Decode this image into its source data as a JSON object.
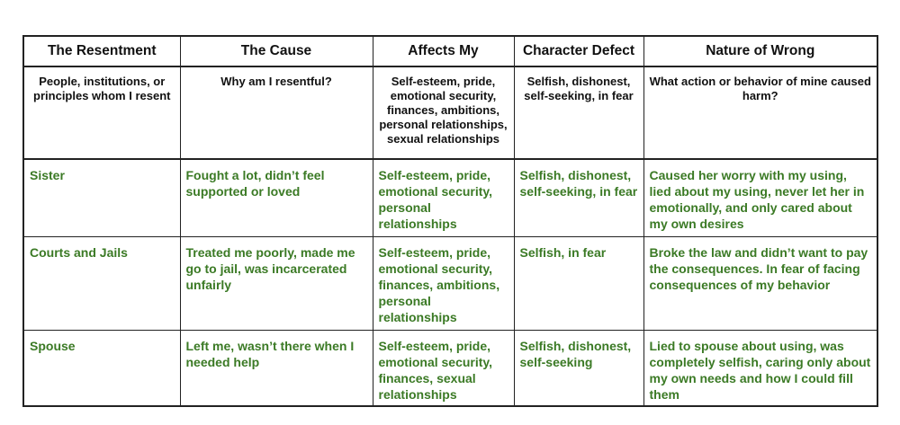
{
  "headers": [
    "The Resentment",
    "The Cause",
    "Affects My",
    "Character Defect",
    "Nature of Wrong"
  ],
  "subheaders": [
    "People, institutions, or principles whom I resent",
    "Why am I resentful?",
    "Self-esteem, pride, emotional security, finances, ambitions, personal relationships, sexual relationships",
    "Selfish, dishonest, self-seeking, in fear",
    "What action or behavior of mine caused harm?"
  ],
  "rows": [
    [
      "Sister",
      "Fought a lot, didn’t feel supported or loved",
      "Self-esteem, pride, emotional security, personal relationships",
      "Selfish, dishonest, self-seeking, in fear",
      "Caused her worry with my using, lied about my using, never let her in emotionally, and only cared about my own desires"
    ],
    [
      "Courts and Jails",
      "Treated me poorly, made me go to jail, was incarcerated unfairly",
      "Self-esteem, pride, emotional security, finances, ambitions, personal relationships",
      "Selfish, in fear",
      "Broke the law and didn’t want to pay the consequences. In fear of facing consequences of my behavior"
    ],
    [
      "Spouse",
      "Left me, wasn’t there when I needed help",
      "Self-esteem, pride, emotional security, finances, sexual relationships",
      "Selfish, dishonest, self-seeking",
      "Lied to spouse about using, was completely selfish, caring only about my own needs and how I could fill them"
    ]
  ],
  "colors": {
    "entry_text": "#3b7a25",
    "header_text": "#111111",
    "border": "#222222"
  }
}
